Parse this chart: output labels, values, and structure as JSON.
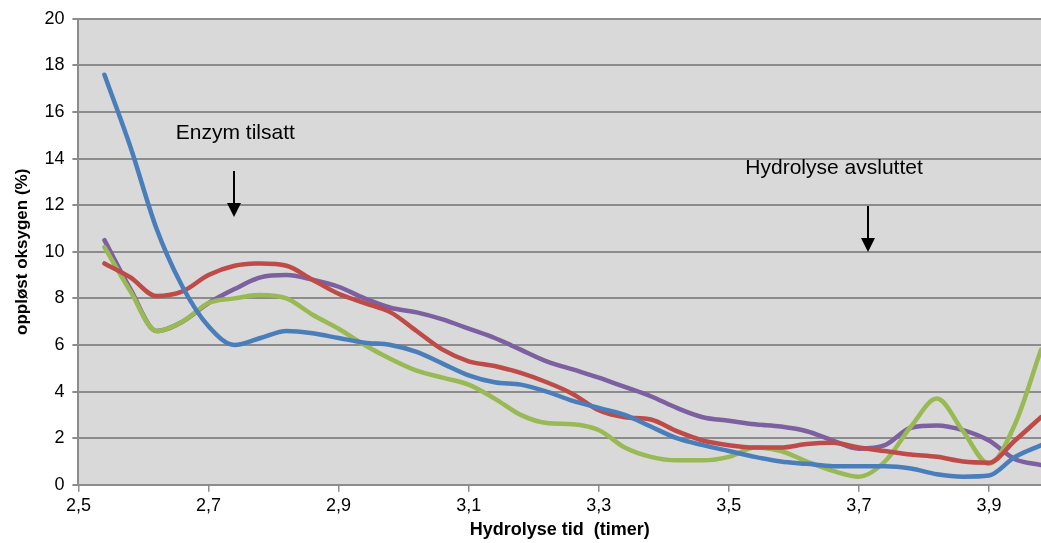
{
  "chart_data": {
    "type": "line",
    "xlabel": "Hydrolyse tid  (timer)",
    "ylabel": "oppløst oksygen (%)",
    "x": [
      2.54,
      2.58,
      2.62,
      2.66,
      2.7,
      2.74,
      2.78,
      2.82,
      2.86,
      2.9,
      2.94,
      2.98,
      3.02,
      3.06,
      3.1,
      3.14,
      3.18,
      3.22,
      3.26,
      3.3,
      3.34,
      3.38,
      3.42,
      3.46,
      3.5,
      3.54,
      3.58,
      3.62,
      3.66,
      3.7,
      3.74,
      3.78,
      3.82,
      3.86,
      3.9,
      3.94,
      3.98
    ],
    "series": [
      {
        "color": "#4a7ebb",
        "values": [
          17.6,
          14.5,
          11,
          8.5,
          6.8,
          6.0,
          6.3,
          6.6,
          6.5,
          6.3,
          6.1,
          6.0,
          5.7,
          5.2,
          4.7,
          4.4,
          4.3,
          4.0,
          3.6,
          3.3,
          3.0,
          2.5,
          2.0,
          1.7,
          1.45,
          1.2,
          1.0,
          0.9,
          0.8,
          0.8,
          0.8,
          0.7,
          0.45,
          0.35,
          0.4,
          1.2,
          1.7
        ]
      },
      {
        "color": "#be4b48",
        "values": [
          9.5,
          8.9,
          8.1,
          8.3,
          9.0,
          9.4,
          9.5,
          9.4,
          8.8,
          8.2,
          7.8,
          7.4,
          6.6,
          5.8,
          5.3,
          5.1,
          4.8,
          4.4,
          3.9,
          3.2,
          2.9,
          2.8,
          2.3,
          1.9,
          1.7,
          1.6,
          1.6,
          1.75,
          1.8,
          1.6,
          1.45,
          1.3,
          1.2,
          1.0,
          0.95,
          1.9,
          2.9
        ]
      },
      {
        "color": "#98b954",
        "values": [
          10.2,
          8.3,
          6.6,
          7.0,
          7.8,
          8.0,
          8.15,
          8.0,
          7.3,
          6.7,
          6.0,
          5.4,
          4.9,
          4.6,
          4.3,
          3.7,
          3.0,
          2.65,
          2.6,
          2.35,
          1.6,
          1.2,
          1.05,
          1.05,
          1.2,
          1.6,
          1.45,
          1.0,
          0.6,
          0.35,
          1.0,
          2.5,
          3.7,
          2.3,
          0.9,
          2.6,
          5.8
        ]
      },
      {
        "color": "#7d60a0",
        "values": [
          10.5,
          8.4,
          6.6,
          7.0,
          7.8,
          8.4,
          8.9,
          9.0,
          8.8,
          8.5,
          8.0,
          7.6,
          7.4,
          7.1,
          6.7,
          6.3,
          5.8,
          5.3,
          4.95,
          4.6,
          4.2,
          3.8,
          3.3,
          2.9,
          2.75,
          2.6,
          2.5,
          2.3,
          1.9,
          1.55,
          1.7,
          2.45,
          2.55,
          2.35,
          1.9,
          1.1,
          0.85
        ]
      }
    ],
    "xlim": [
      2.5,
      3.98
    ],
    "xticks": [
      {
        "value": 2.5,
        "label": "2,5"
      },
      {
        "value": 2.7,
        "label": "2,7"
      },
      {
        "value": 2.9,
        "label": "2,9"
      },
      {
        "value": 3.1,
        "label": "3,1"
      },
      {
        "value": 3.3,
        "label": "3,3"
      },
      {
        "value": 3.5,
        "label": "3,5"
      },
      {
        "value": 3.7,
        "label": "3,7"
      },
      {
        "value": 3.9,
        "label": "3,9"
      }
    ],
    "ylim": [
      0,
      20
    ],
    "yticks": [
      0,
      2,
      4,
      6,
      8,
      10,
      12,
      14,
      16,
      18,
      20
    ],
    "grid": "y",
    "marker": "none",
    "line_style": "solid",
    "legend": false,
    "annotations": [
      "Enzym tilsatt",
      "Hydrolyse avsluttet"
    ]
  }
}
